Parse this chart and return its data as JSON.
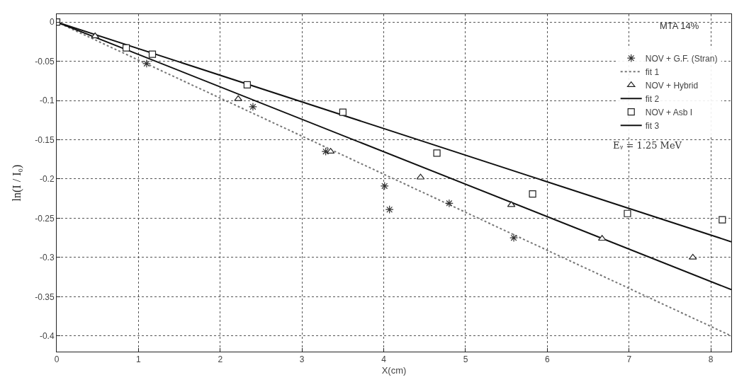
{
  "chart_data": {
    "type": "scatter",
    "xlabel": "X(cm)",
    "ylabel": "ln(I / I₀)",
    "xlim": [
      0,
      8.25
    ],
    "ylim": [
      -0.42,
      0.01
    ],
    "xticks": [
      0,
      1,
      2,
      3,
      4,
      5,
      6,
      7,
      8
    ],
    "yticks": [
      0,
      -0.05,
      -0.1,
      -0.15,
      -0.2,
      -0.25,
      -0.3,
      -0.35,
      -0.4
    ],
    "grid": true,
    "legend": "top right",
    "annotations": [
      "MTA 14%",
      "Eᵧ = 1.25 MeV"
    ],
    "series": [
      {
        "name": "NOV + G.F. (Stran)",
        "marker": "cross",
        "color": "#333333",
        "x": [
          1.1,
          2.4,
          3.29,
          4.01,
          4.07,
          4.8,
          5.59
        ],
        "values": [
          -0.053,
          -0.108,
          -0.165,
          -0.209,
          -0.239,
          -0.231,
          -0.275
        ]
      },
      {
        "name": "fit 1",
        "type": "line",
        "line_style": "dotted",
        "color": "#777777",
        "x": [
          0,
          8.25
        ],
        "values": [
          0,
          -0.4
        ]
      },
      {
        "name": "NOV + Hybrid",
        "marker": "triangle",
        "color": "#222222",
        "x": [
          0.47,
          2.22,
          3.35,
          4.45,
          5.56,
          6.67,
          7.78
        ],
        "values": [
          -0.018,
          -0.098,
          -0.165,
          -0.198,
          -0.233,
          -0.276,
          -0.3
        ]
      },
      {
        "name": "fit 2",
        "type": "line",
        "line_style": "solid",
        "color": "#111111",
        "x": [
          0,
          8.25
        ],
        "values": [
          0,
          -0.341
        ]
      },
      {
        "name": "NOV + Asb I",
        "marker": "square",
        "color": "#222222",
        "x": [
          0,
          0.85,
          1.17,
          2.33,
          3.5,
          4.65,
          5.82,
          6.98,
          8.14
        ],
        "values": [
          0,
          -0.033,
          -0.041,
          -0.08,
          -0.115,
          -0.167,
          -0.219,
          -0.244,
          -0.252
        ]
      },
      {
        "name": "fit 3",
        "type": "line",
        "line_style": "solid",
        "color": "#111111",
        "x": [
          0,
          8.25
        ],
        "values": [
          0,
          -0.28
        ]
      }
    ]
  }
}
